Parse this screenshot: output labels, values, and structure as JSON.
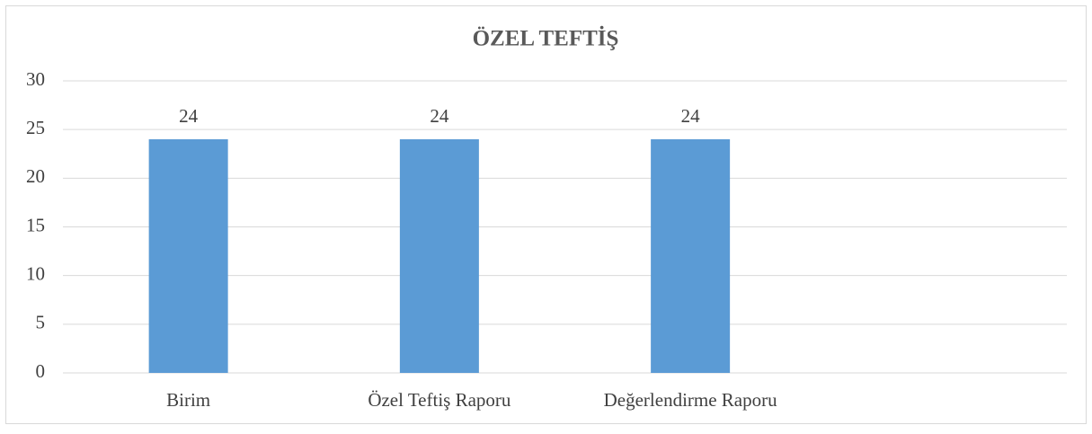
{
  "chart_data": {
    "type": "bar",
    "title": "ÖZEL TEFTİŞ",
    "categories": [
      "Birim",
      "Özel Teftiş Raporu",
      "Değerlendirme Raporu",
      null
    ],
    "values": [
      24,
      24,
      24,
      null
    ],
    "color": "#5b9bd5",
    "ylim": [
      0,
      30
    ],
    "yticks": [
      0,
      5,
      10,
      15,
      20,
      25,
      30
    ],
    "grid": true
  }
}
